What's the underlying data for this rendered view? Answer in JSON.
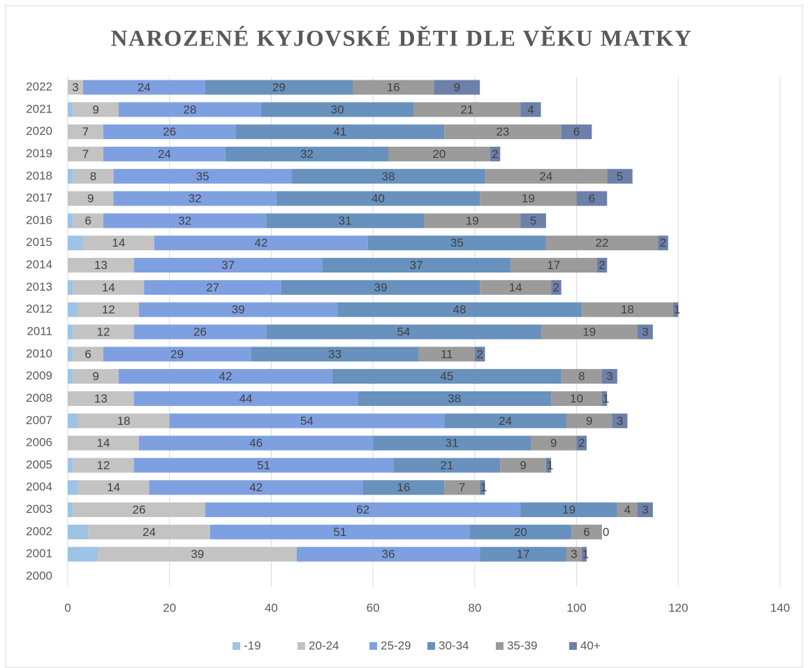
{
  "chart_data": {
    "type": "stacked_barh",
    "title": "NAROZENÉ KYJOVSKÉ DĚTI DLE VĚKU MATKY",
    "categories": [
      "2000",
      "2001",
      "2002",
      "2003",
      "2004",
      "2005",
      "2006",
      "2007",
      "2008",
      "2009",
      "2010",
      "2011",
      "2012",
      "2013",
      "2014",
      "2015",
      "2016",
      "2017",
      "2018",
      "2019",
      "2020",
      "2021",
      "2022"
    ],
    "series": [
      {
        "name": "-19",
        "color": "#9dc3e6",
        "show_labels": false,
        "values": [
          null,
          6,
          4,
          1,
          2,
          1,
          0,
          2,
          0,
          1,
          1,
          1,
          2,
          1,
          0,
          3,
          1,
          0,
          1,
          0,
          0,
          1,
          0
        ]
      },
      {
        "name": "20-24",
        "color": "#c3c3c3",
        "show_labels": true,
        "values": [
          null,
          39,
          24,
          26,
          14,
          12,
          14,
          18,
          13,
          9,
          6,
          12,
          12,
          14,
          13,
          14,
          6,
          9,
          8,
          7,
          7,
          9,
          3
        ]
      },
      {
        "name": "25-29",
        "color": "#7fa0e0",
        "show_labels": true,
        "values": [
          null,
          36,
          51,
          62,
          42,
          51,
          46,
          54,
          44,
          42,
          29,
          26,
          39,
          27,
          37,
          42,
          32,
          32,
          35,
          24,
          26,
          28,
          24
        ]
      },
      {
        "name": "30-34",
        "color": "#6891bd",
        "show_labels": true,
        "values": [
          null,
          17,
          20,
          19,
          16,
          21,
          31,
          24,
          38,
          45,
          33,
          54,
          48,
          39,
          37,
          35,
          31,
          40,
          38,
          32,
          41,
          30,
          29
        ]
      },
      {
        "name": "35-39",
        "color": "#9b9b9b",
        "show_labels": true,
        "values": [
          null,
          3,
          6,
          4,
          7,
          9,
          9,
          9,
          10,
          8,
          11,
          19,
          18,
          14,
          17,
          22,
          19,
          19,
          24,
          20,
          23,
          21,
          16
        ]
      },
      {
        "name": "40+",
        "color": "#6c80a9",
        "show_labels": true,
        "values": [
          null,
          1,
          0,
          3,
          1,
          1,
          2,
          3,
          1,
          3,
          2,
          3,
          1,
          2,
          2,
          2,
          5,
          6,
          5,
          2,
          6,
          4,
          9
        ]
      }
    ],
    "xlim": [
      0,
      140
    ],
    "xticks": [
      0,
      20,
      40,
      60,
      80,
      100,
      120,
      140
    ],
    "grid": true,
    "legend": "bottom"
  }
}
